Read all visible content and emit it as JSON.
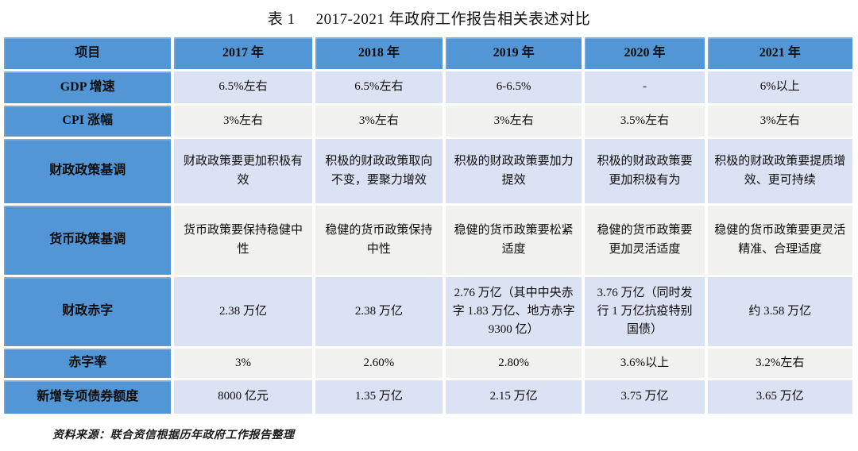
{
  "title": {
    "prefix": "表 1",
    "main": "2017-2021 年政府工作报告相关表述对比"
  },
  "table": {
    "columns": [
      "项目",
      "2017 年",
      "2018 年",
      "2019 年",
      "2020 年",
      "2021 年"
    ],
    "rows": [
      {
        "label": "GDP 增速",
        "cells": [
          "6.5%左右",
          "6.5%左右",
          "6-6.5%",
          "-",
          "6%以上"
        ]
      },
      {
        "label": "CPI 涨幅",
        "cells": [
          "3%左右",
          "3%左右",
          "3%左右",
          "3.5%左右",
          "3%左右"
        ]
      },
      {
        "label": "财政政策基调",
        "cells": [
          "财政政策要更加积极有效",
          "积极的财政政策取向不变，要聚力增效",
          "积极的财政政策要加力提效",
          "积极的财政政策要更加积极有为",
          "积极的财政政策要提质增效、更可持续"
        ]
      },
      {
        "label": "货币政策基调",
        "cells": [
          "货币政策要保持稳健中性",
          "稳健的货币政策保持中性",
          "稳健的货币政策要松紧适度",
          "稳健的货币政策要更加灵活适度",
          "稳健的货币政策要更灵活精准、合理适度"
        ]
      },
      {
        "label": "财政赤字",
        "cells": [
          "2.38 万亿",
          "2.38 万亿",
          "2.76 万亿（其中中央赤字 1.83 万亿、地方赤字 9300 亿）",
          "3.76 万亿（同时发行 1 万亿抗疫特别国债）",
          "约 3.58 万亿"
        ]
      },
      {
        "label": "赤字率",
        "cells": [
          "3%",
          "2.60%",
          "2.80%",
          "3.6%以上",
          "3.2%左右"
        ]
      },
      {
        "label": "新增专项债券额度",
        "cells": [
          "8000 亿元",
          "1.35 万亿",
          "2.15 万亿",
          "3.75 万亿",
          "3.65 万亿"
        ]
      }
    ]
  },
  "source_note": "资料来源：联合资信根据历年政府工作报告整理",
  "colors": {
    "header_blue": "#5296D5",
    "band_light_blue": "#DAE2F3",
    "band_gray": "#F1F1F0"
  }
}
